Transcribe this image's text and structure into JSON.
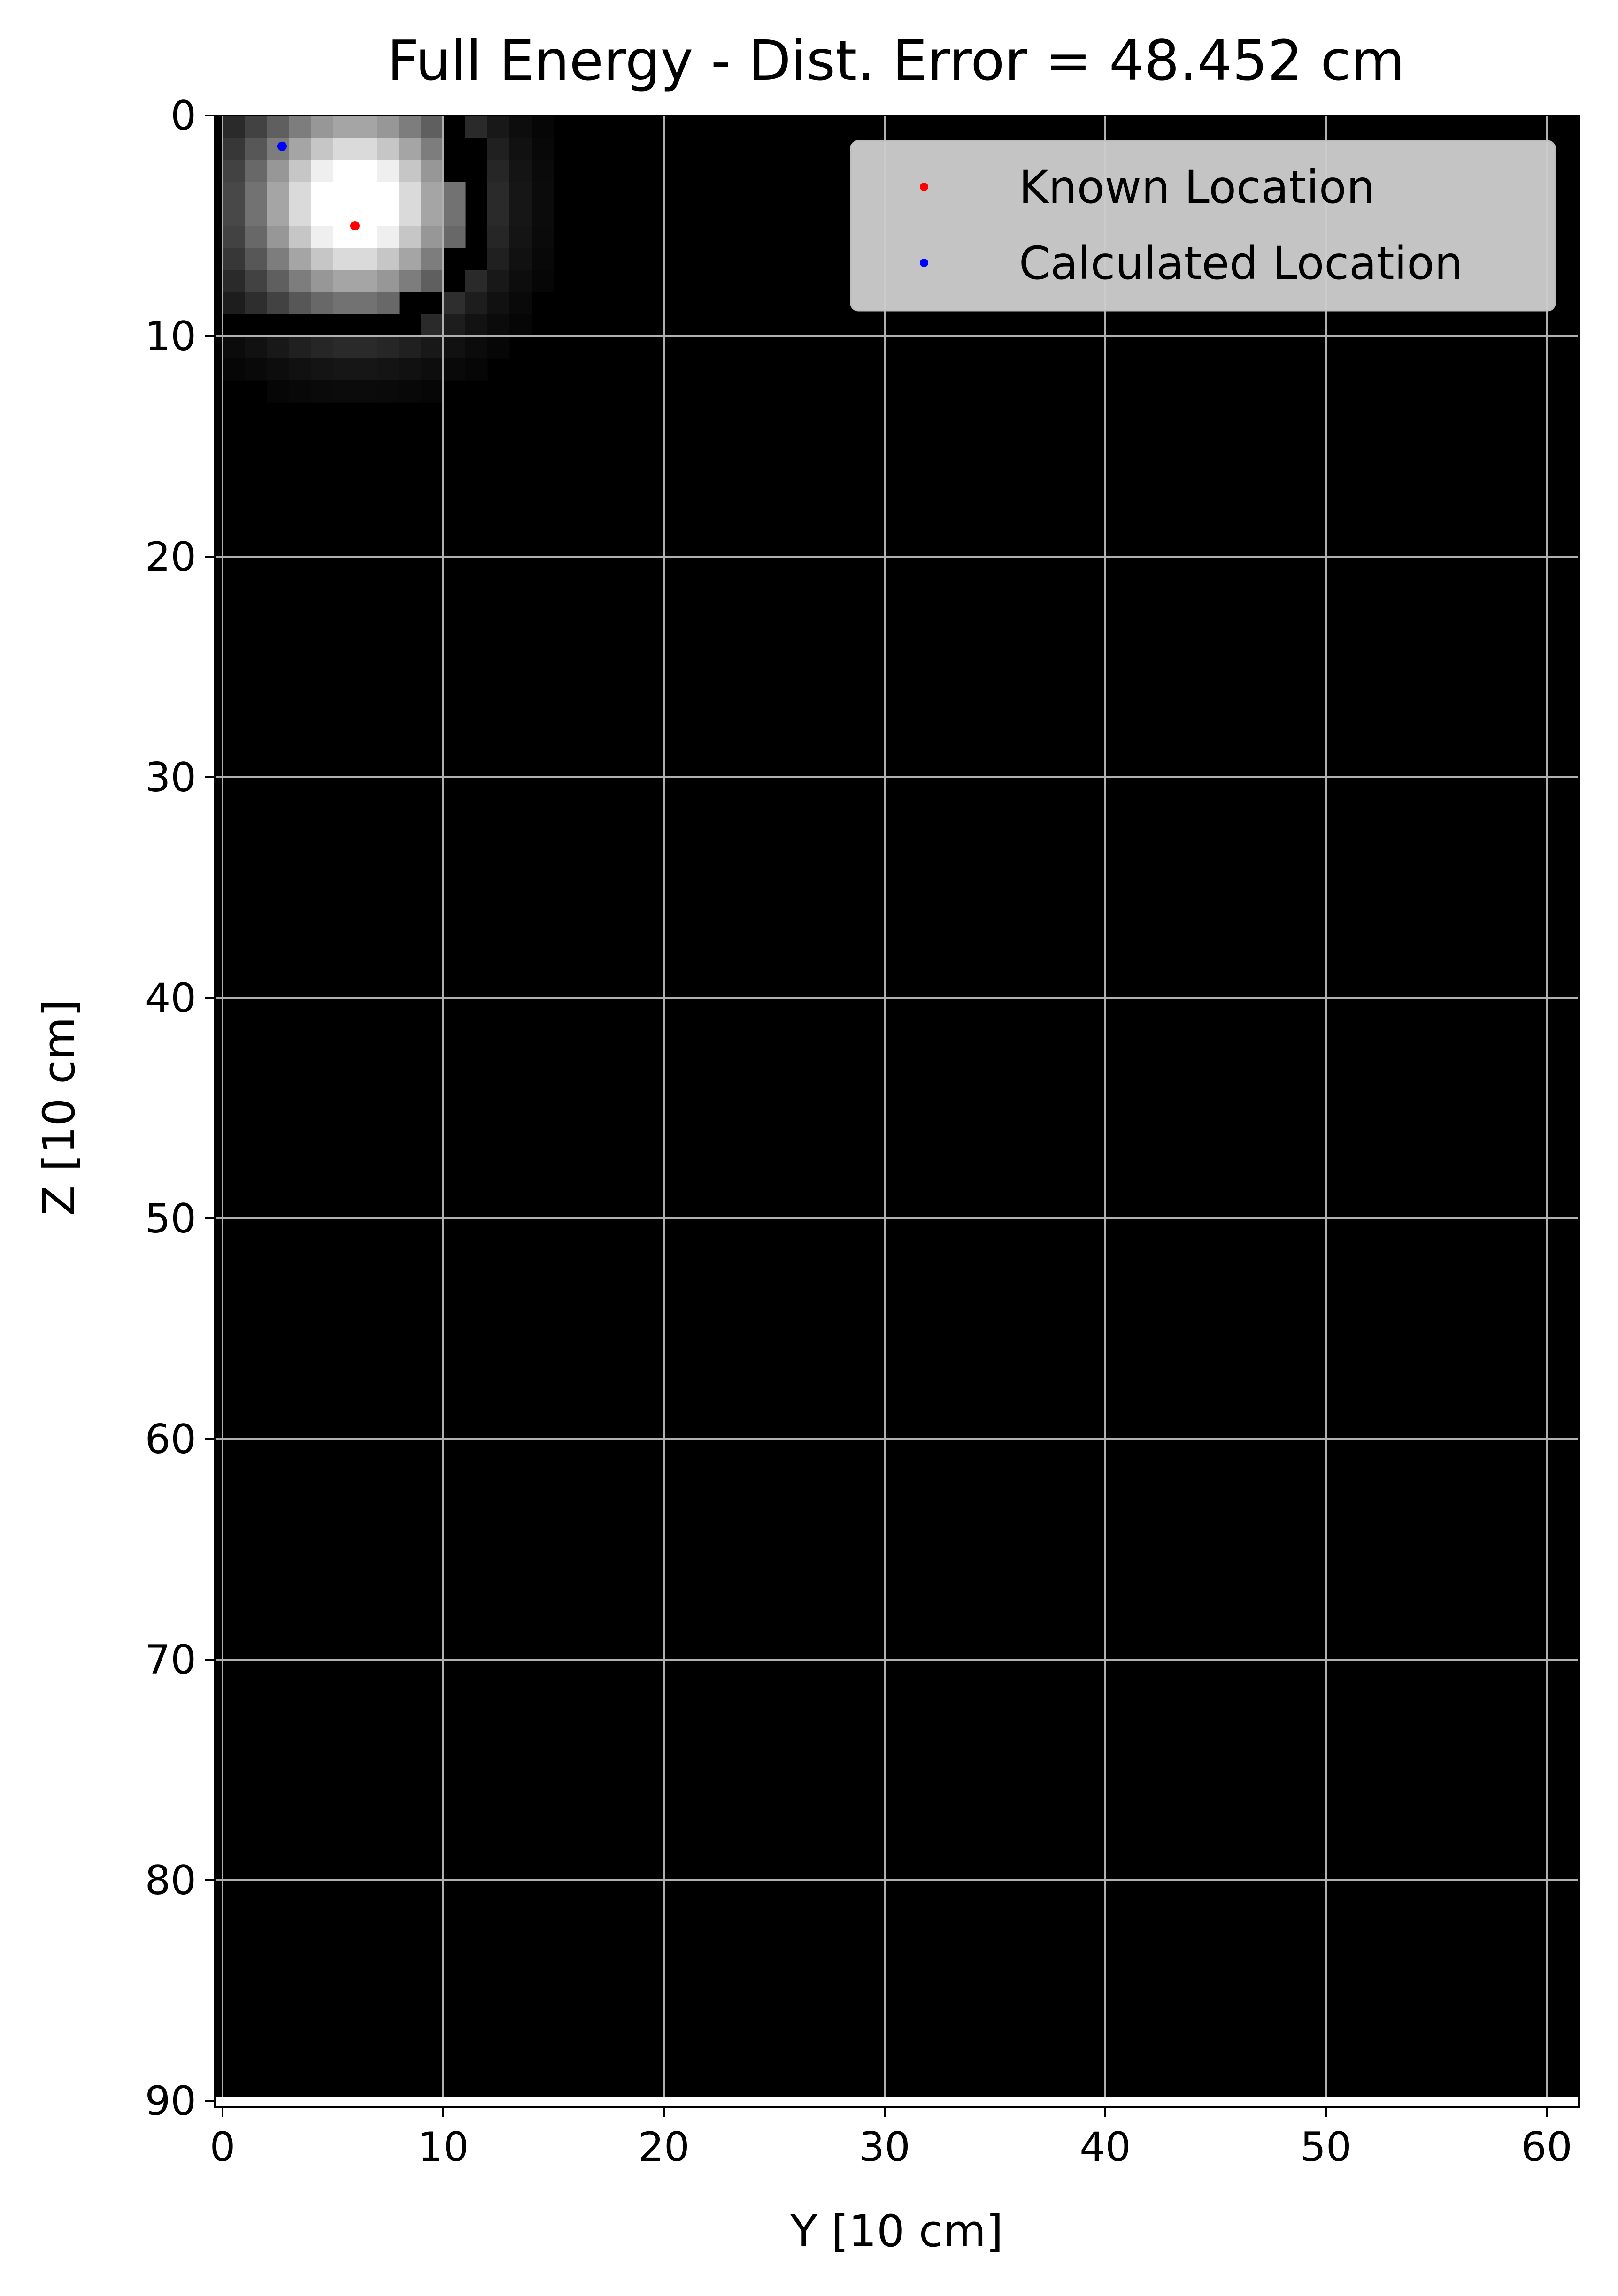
{
  "chart_data": {
    "type": "heatmap",
    "title": "Full Energy - Dist. Error = 48.452 cm",
    "xlabel": "Y [10 cm]",
    "ylabel": "Z [10 cm]",
    "xlim": [
      -0.5,
      61.5
    ],
    "ylim": [
      90,
      0
    ],
    "y_inverted": true,
    "xticks": [
      0,
      10,
      20,
      30,
      40,
      50,
      60
    ],
    "yticks": [
      0,
      10,
      20,
      30,
      40,
      50,
      60,
      70,
      80,
      90
    ],
    "xtick_labels": [
      "0",
      "10",
      "20",
      "30",
      "40",
      "50",
      "60"
    ],
    "ytick_labels": [
      "0",
      "10",
      "20",
      "30",
      "40",
      "50",
      "60",
      "70",
      "80",
      "90"
    ],
    "grid": true,
    "colormap": "gray",
    "background_color": "#000000",
    "legend_position": "upper right",
    "series": [
      {
        "name": "Known Location",
        "type": "scatter",
        "color": "#ff0000",
        "x": [
          6
        ],
        "y": [
          5
        ]
      },
      {
        "name": "Calculated Location",
        "type": "scatter",
        "color": "#0000ff",
        "x": [
          2.7
        ],
        "y": [
          1.4
        ]
      }
    ],
    "heatmap_blob": {
      "peak_x": 6,
      "peak_y": 4,
      "sigma": 3.3,
      "extent_x": [
        0,
        18
      ],
      "extent_y": [
        0,
        15
      ]
    }
  }
}
